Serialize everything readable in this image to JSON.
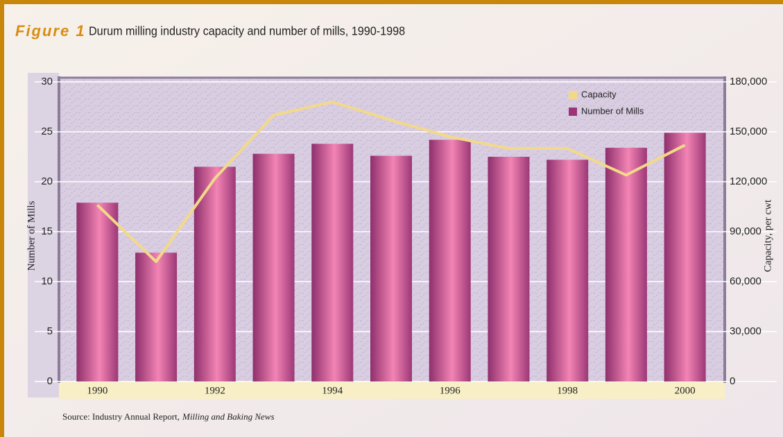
{
  "chart_data": {
    "type": "bar_line",
    "figure_label": "Figure 1",
    "title": "Durum milling industry capacity and number of mills, 1990-1998",
    "y_label": "Number of Mills",
    "y2_label": "Capacity, per cwt",
    "source": "Source: Industry Annual Report,",
    "source_italic": "Milling and Baking News",
    "categories": [
      "1990",
      null,
      "1992",
      null,
      "1994",
      null,
      "1996",
      null,
      "1998",
      null,
      "2000"
    ],
    "series": [
      {
        "name": "Number of Mills",
        "type": "bar",
        "color": "#b0407f",
        "values": [
          17.9,
          12.9,
          21.5,
          22.8,
          23.8,
          22.6,
          24.2,
          22.5,
          22.2,
          23.4,
          24.9
        ]
      },
      {
        "name": "Capacity",
        "type": "line",
        "axis": "y2",
        "color": "#f2d98a",
        "values": [
          106000,
          72000,
          122000,
          160000,
          168000,
          157000,
          147000,
          140000,
          140000,
          124000,
          142000
        ]
      }
    ],
    "ylim": [
      0,
      30
    ],
    "yticks": [
      0,
      5,
      10,
      15,
      20,
      25,
      30
    ],
    "y2lim": [
      0,
      180000
    ],
    "y2ticks": [
      0,
      {
        "value": 30000,
        "label": "30,000"
      },
      {
        "value": 60000,
        "label": "60,000"
      },
      {
        "value": 90000,
        "label": "90,000"
      },
      {
        "value": 120000,
        "label": "120,000"
      },
      {
        "value": 150000,
        "label": "150,000"
      },
      {
        "value": 180000,
        "label": "180,000"
      }
    ],
    "grid": true,
    "legend": "upper right"
  }
}
